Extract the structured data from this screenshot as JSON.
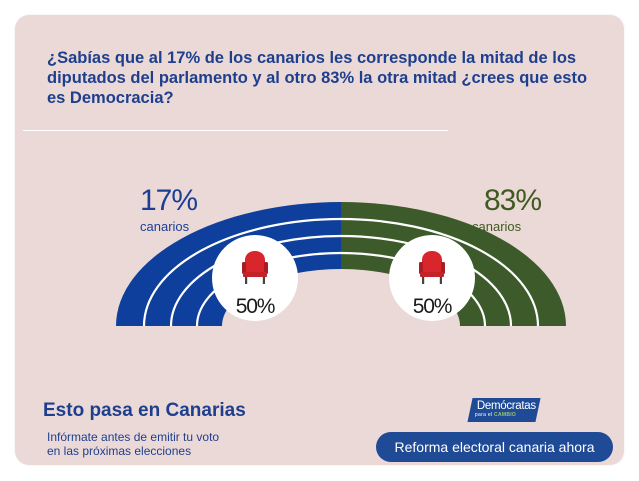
{
  "question": "¿Sabías que al 17% de los canarios les corresponde la mitad de los diputados del parlamento y al otro 83% la otra mitad ¿crees que esto es Democracia?",
  "left_group": {
    "percent": "17%",
    "label": "canarios",
    "seat_share": "50%",
    "color": "#0e3f9c"
  },
  "right_group": {
    "percent": "83%",
    "label": "canarios",
    "seat_share": "50%",
    "color": "#3d5b2a"
  },
  "seat_icon": "armchair-icon",
  "footer": {
    "title": "Esto pasa en Canarias",
    "subtitle_line1": "Infórmate antes de emitir tu voto",
    "subtitle_line2": "en las próximas elecciones"
  },
  "logo": {
    "name": "Demócratas",
    "tagline_prefix": "para el",
    "tagline_accent": "CAMBIO"
  },
  "cta_button": "Reforma electoral canaria ahora",
  "colors": {
    "background": "#ebd9d8",
    "text_blue": "#1e3f8d",
    "chair_red": "#d8262c"
  }
}
